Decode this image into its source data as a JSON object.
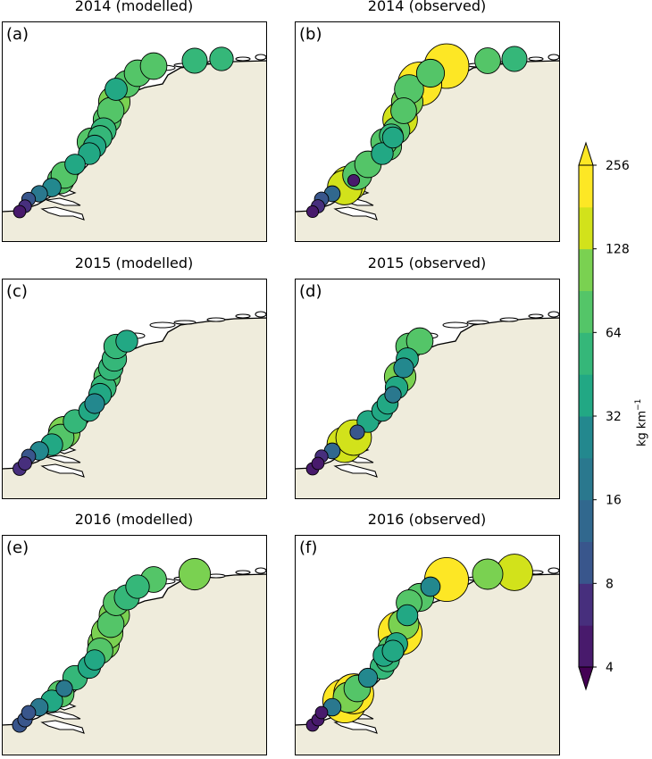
{
  "chart_data": {
    "type": "scatter",
    "description": "Map panels of coastal stations (Dutch coast) with bubble color and size encoding amount",
    "colorbar": {
      "label": "kg km",
      "label_superscript": "−1",
      "scale": "log2",
      "range": [
        4,
        256
      ],
      "ticks": [
        "4",
        "8",
        "16",
        "32",
        "64",
        "128",
        "256"
      ],
      "levels": 12,
      "extend": "both",
      "colormap": [
        "#440154",
        "#481a6c",
        "#472f7d",
        "#414487",
        "#39568c",
        "#31688e",
        "#2a788e",
        "#23888e",
        "#1f988b",
        "#22a884",
        "#35b779",
        "#54c568",
        "#7ad151",
        "#a5db36",
        "#d2e21b",
        "#fde725"
      ]
    },
    "panels": [
      {
        "label": "(a)",
        "title": "2014 (modelled)",
        "values": [
          5,
          6,
          8,
          16,
          24,
          70,
          70,
          32,
          40,
          44,
          52,
          60,
          80,
          70,
          110,
          42,
          70,
          70,
          70,
          60,
          50,
          80
        ]
      },
      {
        "label": "(b)",
        "title": "2014 (observed)",
        "values": [
          4,
          7,
          9,
          14,
          140,
          4,
          90,
          70,
          40,
          80,
          36,
          70,
          140,
          64,
          110,
          90,
          250,
          80,
          260,
          64,
          60,
          70,
          50,
          150
        ]
      },
      {
        "label": "(c)",
        "title": "2015 (modelled)",
        "values": [
          7,
          7,
          9,
          24,
          40,
          70,
          110,
          50,
          36,
          30,
          44,
          60,
          70,
          56,
          56,
          56,
          40
        ]
      },
      {
        "label": "(d)",
        "title": "2015 (observed)",
        "values": [
          5,
          5,
          6,
          14,
          150,
          150,
          10,
          40,
          36,
          36,
          16,
          44,
          110,
          30,
          42,
          70,
          70
        ]
      },
      {
        "label": "(e)",
        "title": "2016 (modelled)",
        "values": [
          10,
          10,
          9,
          20,
          40,
          70,
          16,
          56,
          44,
          32,
          64,
          110,
          110,
          70,
          100,
          64,
          60,
          50,
          64,
          110
        ]
      },
      {
        "label": "(f)",
        "title": "2016 (observed)",
        "values": [
          5,
          5,
          5,
          20,
          250,
          200,
          70,
          26,
          54,
          50,
          38,
          42,
          250,
          100,
          36,
          64,
          80,
          28,
          250,
          100,
          160,
          40,
          70,
          100
        ]
      }
    ]
  }
}
